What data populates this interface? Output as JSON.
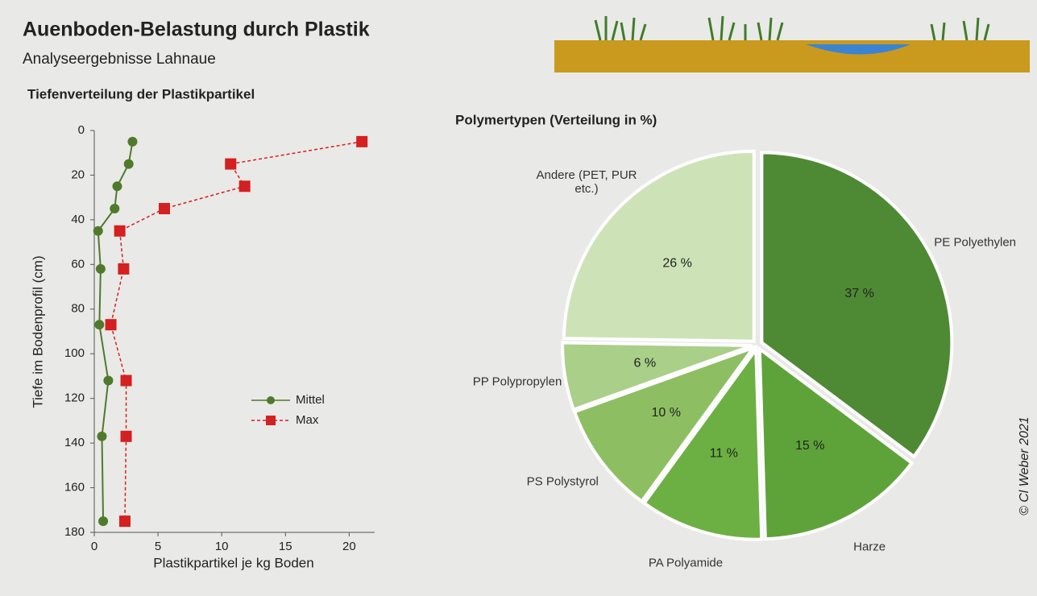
{
  "title": "Auenboden-Belastung durch Plastik",
  "subtitle": "Analyseergebnisse Lahnaue",
  "credit": "© Cl Weber 2021",
  "chart_data": [
    {
      "type": "line",
      "title": "Tiefenverteilung der Plastikpartikel",
      "x_label": "Plastikpartikel je kg Boden",
      "y_label": "Tiefe im Bodenprofil (cm)",
      "xlim": [
        0,
        22
      ],
      "xticks": [
        0,
        5,
        10,
        15,
        20
      ],
      "ylim": [
        0,
        180
      ],
      "yticks": [
        0,
        20,
        40,
        60,
        80,
        100,
        120,
        140,
        160,
        180
      ],
      "y_inverted": true,
      "legend": "right",
      "series": [
        {
          "name": "Mittel",
          "color": "#4f7a2c",
          "dashed": false,
          "marker": "circle",
          "x": [
            3,
            2.7,
            1.8,
            1.6,
            0.3,
            0.5,
            0.4,
            1.1,
            0.6,
            0.7
          ],
          "y": [
            5,
            15,
            25,
            35,
            45,
            62,
            87,
            112,
            137,
            175
          ]
        },
        {
          "name": "Max",
          "color": "#d42020",
          "dashed": true,
          "marker": "square",
          "x": [
            21,
            10.7,
            11.8,
            5.5,
            2,
            2.3,
            1.3,
            2.5,
            2.5,
            2.4
          ],
          "y": [
            5,
            15,
            25,
            35,
            45,
            62,
            87,
            112,
            137,
            175
          ]
        }
      ]
    },
    {
      "type": "pie",
      "title": "Polymertypen (Verteilung in %)",
      "categories": [
        "PE Polyethylen",
        "Harze",
        "PA Polyamide",
        "PS Polystyrol",
        "PP Polypropylen",
        "Andere (PET, PUR etc.)"
      ],
      "values": [
        37,
        15,
        11,
        10,
        6,
        26
      ],
      "value_labels": [
        "37 %",
        "15 %",
        "11 %",
        "10 %",
        "6 %",
        "26 %"
      ],
      "colors": [
        "#4e8a34",
        "#5ea33a",
        "#6cb043",
        "#8dbf62",
        "#a9cf89",
        "#cde3b7"
      ]
    }
  ]
}
